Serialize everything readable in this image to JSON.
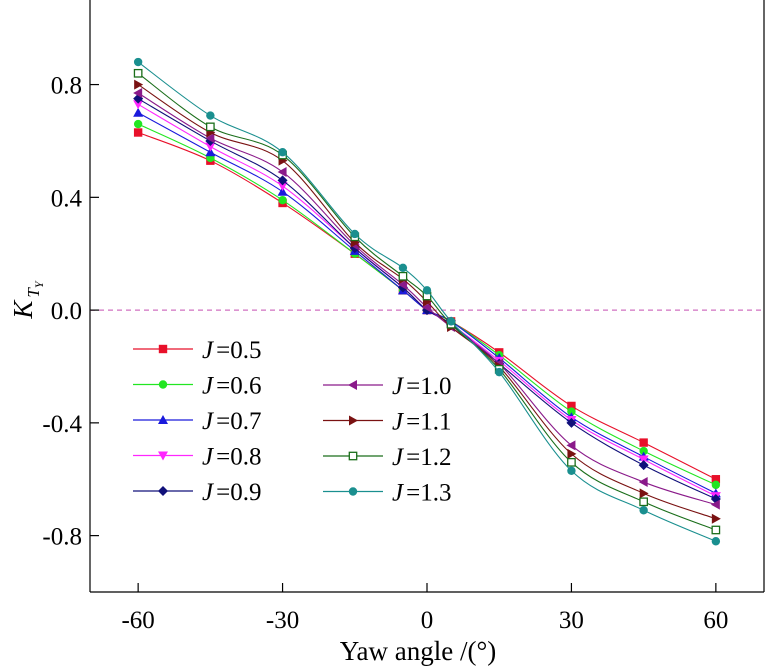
{
  "chart_data": {
    "type": "line",
    "title": "",
    "xlabel": "Yaw angle /(°)",
    "ylabel": "K",
    "ylabel_subscript": "T",
    "ylabel_subsubscript": "Y",
    "xlim": [
      -70,
      70
    ],
    "ylim": [
      -1.0,
      1.1
    ],
    "xticks": [
      -60,
      -30,
      0,
      30,
      60
    ],
    "xtick_labels": [
      "-60",
      "-30",
      "0",
      "30",
      "60"
    ],
    "yticks": [
      0.8,
      0.4,
      0.0,
      -0.4,
      -0.8
    ],
    "ytick_labels": [
      "0.8",
      "0.4",
      "0.0",
      "-0.4",
      "-0.8"
    ],
    "reference_line": {
      "y": 0.0,
      "color": "#d070c0",
      "style": "dashed"
    },
    "x": [
      -60,
      -45,
      -30,
      -15,
      -5,
      0,
      5,
      15,
      30,
      45,
      60
    ],
    "series": [
      {
        "name": "J =0.5",
        "label_var": "J",
        "label_val": "=0.5",
        "color": "#e8102a",
        "marker": "square",
        "values": [
          0.63,
          0.53,
          0.38,
          0.2,
          0.07,
          0.0,
          -0.04,
          -0.15,
          -0.34,
          -0.47,
          -0.6
        ]
      },
      {
        "name": "J =0.6",
        "label_var": "J",
        "label_val": "=0.6",
        "color": "#22e622",
        "marker": "circle",
        "values": [
          0.66,
          0.54,
          0.39,
          0.2,
          0.07,
          0.0,
          -0.04,
          -0.16,
          -0.36,
          -0.5,
          -0.62
        ]
      },
      {
        "name": "J =0.7",
        "label_var": "J",
        "label_val": "=0.7",
        "color": "#1a1adc",
        "marker": "triangle-up",
        "values": [
          0.7,
          0.56,
          0.42,
          0.21,
          0.07,
          0.0,
          -0.04,
          -0.17,
          -0.38,
          -0.52,
          -0.65
        ]
      },
      {
        "name": "J =0.8",
        "label_var": "J",
        "label_val": "=0.8",
        "color": "#ff26ff",
        "marker": "triangle-down",
        "values": [
          0.73,
          0.58,
          0.44,
          0.22,
          0.08,
          0.0,
          -0.05,
          -0.18,
          -0.39,
          -0.53,
          -0.66
        ]
      },
      {
        "name": "J =0.9",
        "label_var": "J",
        "label_val": "=0.9",
        "color": "#10107a",
        "marker": "diamond",
        "values": [
          0.75,
          0.6,
          0.46,
          0.22,
          0.08,
          0.0,
          -0.05,
          -0.19,
          -0.4,
          -0.55,
          -0.67
        ]
      },
      {
        "name": "J =1.0",
        "label_var": "J",
        "label_val": "=1.0",
        "color": "#8a1a8a",
        "marker": "triangle-left",
        "values": [
          0.77,
          0.61,
          0.49,
          0.23,
          0.09,
          0.01,
          -0.06,
          -0.19,
          -0.48,
          -0.61,
          -0.69
        ]
      },
      {
        "name": "J =1.1",
        "label_var": "J",
        "label_val": "=1.1",
        "color": "#7a1212",
        "marker": "triangle-right",
        "values": [
          0.8,
          0.63,
          0.53,
          0.24,
          0.11,
          0.03,
          -0.06,
          -0.2,
          -0.51,
          -0.65,
          -0.74
        ]
      },
      {
        "name": "J =1.2",
        "label_var": "J",
        "label_val": "=1.2",
        "color": "#1a6e1a",
        "marker": "square-open",
        "values": [
          0.84,
          0.65,
          0.55,
          0.26,
          0.12,
          0.05,
          -0.05,
          -0.21,
          -0.54,
          -0.68,
          -0.78
        ]
      },
      {
        "name": "J =1.3",
        "label_var": "J",
        "label_val": "=1.3",
        "color": "#1a8f8f",
        "marker": "circle",
        "values": [
          0.88,
          0.69,
          0.56,
          0.27,
          0.15,
          0.07,
          -0.04,
          -0.22,
          -0.57,
          -0.71,
          -0.82
        ]
      }
    ],
    "legend": {
      "placement": "lower-left",
      "columns": 2
    }
  }
}
